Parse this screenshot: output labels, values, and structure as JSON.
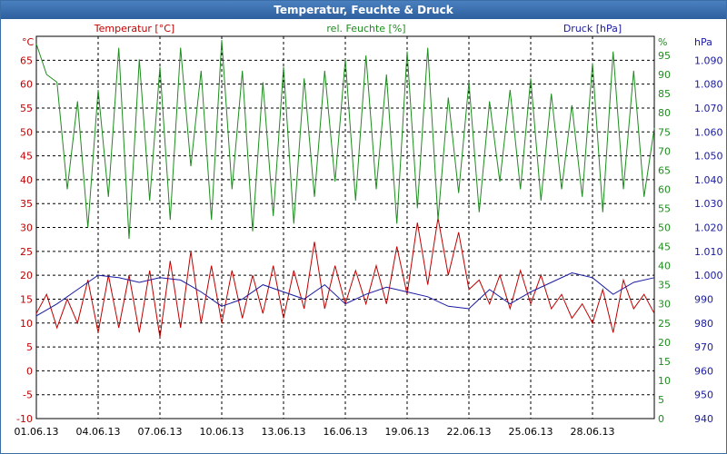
{
  "window": {
    "title": "Temperatur, Feuchte & Druck"
  },
  "chart_data": {
    "type": "line",
    "title": "Temperatur, Feuchte & Druck",
    "x": {
      "label": "",
      "range": [
        0,
        30
      ],
      "ticks": [
        {
          "x": 0,
          "label": "01.06.13"
        },
        {
          "x": 3,
          "label": "04.06.13"
        },
        {
          "x": 6,
          "label": "07.06.13"
        },
        {
          "x": 9,
          "label": "10.06.13"
        },
        {
          "x": 12,
          "label": "13.06.13"
        },
        {
          "x": 15,
          "label": "16.06.13"
        },
        {
          "x": 18,
          "label": "19.06.13"
        },
        {
          "x": 21,
          "label": "22.06.13"
        },
        {
          "x": 24,
          "label": "25.06.13"
        },
        {
          "x": 27,
          "label": "28.06.13"
        }
      ]
    },
    "axes": {
      "temperature": {
        "title": "Temperatur [°C]",
        "unit": "°C",
        "color": "#c00000",
        "ylim": [
          -10,
          70
        ],
        "ticks": [
          "-10",
          "-5",
          "0",
          "5",
          "10",
          "15",
          "20",
          "25",
          "30",
          "35",
          "40",
          "45",
          "50",
          "55",
          "60",
          "65"
        ]
      },
      "humidity": {
        "title": "rel. Feuchte [%]",
        "unit": "%",
        "color": "#1e8c1e",
        "ylim": [
          0,
          100
        ],
        "ticks": [
          "0",
          "5",
          "10",
          "15",
          "20",
          "25",
          "30",
          "35",
          "40",
          "45",
          "50",
          "55",
          "60",
          "65",
          "70",
          "75",
          "80",
          "85",
          "90",
          "95"
        ]
      },
      "pressure": {
        "title": "Druck [hPa]",
        "unit": "hPa",
        "color": "#1a1aa0",
        "ylim": [
          940,
          1100
        ],
        "ticks": [
          "940",
          "950",
          "960",
          "970",
          "980",
          "990",
          "1.000",
          "1.010",
          "1.020",
          "1.030",
          "1.040",
          "1.050",
          "1.060",
          "1.070",
          "1.080",
          "1.090"
        ]
      }
    },
    "series": [
      {
        "name": "Temperatur",
        "axis": "temperature",
        "color": "#c00000",
        "x": [
          0,
          0.5,
          1,
          1.5,
          2,
          2.5,
          3,
          3.5,
          4,
          4.5,
          5,
          5.5,
          6,
          6.5,
          7,
          7.5,
          8,
          8.5,
          9,
          9.5,
          10,
          10.5,
          11,
          11.5,
          12,
          12.5,
          13,
          13.5,
          14,
          14.5,
          15,
          15.5,
          16,
          16.5,
          17,
          17.5,
          18,
          18.5,
          19,
          19.5,
          20,
          20.5,
          21,
          21.5,
          22,
          22.5,
          23,
          23.5,
          24,
          24.5,
          25,
          25.5,
          26,
          26.5,
          27,
          27.5,
          28,
          28.5,
          29,
          29.5,
          30
        ],
        "values": [
          12,
          16,
          9,
          15,
          10,
          19,
          8,
          20,
          9,
          20,
          8,
          21,
          7,
          23,
          9,
          25,
          10,
          22,
          10,
          21,
          11,
          20,
          12,
          22,
          11,
          21,
          13,
          27,
          13,
          22,
          14,
          21,
          14,
          22,
          14,
          26,
          16,
          31,
          18,
          32,
          20,
          29,
          17,
          19,
          14,
          20,
          13,
          21,
          14,
          20,
          13,
          16,
          11,
          14,
          10,
          17,
          8,
          19,
          13,
          16,
          12
        ],
        "peak_max": 32,
        "min": 6
      },
      {
        "name": "rel. Feuchte",
        "axis": "humidity",
        "color": "#1e8c1e",
        "x": [
          0,
          0.5,
          1,
          1.5,
          2,
          2.5,
          3,
          3.5,
          4,
          4.5,
          5,
          5.5,
          6,
          6.5,
          7,
          7.5,
          8,
          8.5,
          9,
          9.5,
          10,
          10.5,
          11,
          11.5,
          12,
          12.5,
          13,
          13.5,
          14,
          14.5,
          15,
          15.5,
          16,
          16.5,
          17,
          17.5,
          18,
          18.5,
          19,
          19.5,
          20,
          20.5,
          21,
          21.5,
          22,
          22.5,
          23,
          23.5,
          24,
          24.5,
          25,
          25.5,
          26,
          26.5,
          27,
          27.5,
          28,
          28.5,
          29,
          29.5,
          30
        ],
        "values": [
          98,
          90,
          88,
          60,
          83,
          50,
          86,
          58,
          97,
          47,
          94,
          57,
          92,
          52,
          97,
          66,
          91,
          52,
          99,
          60,
          91,
          49,
          88,
          53,
          92,
          51,
          89,
          58,
          91,
          62,
          94,
          57,
          95,
          60,
          90,
          51,
          96,
          55,
          97,
          52,
          84,
          59,
          88,
          54,
          83,
          62,
          86,
          60,
          89,
          57,
          85,
          60,
          82,
          58,
          93,
          54,
          96,
          60,
          91,
          58,
          76
        ],
        "peak_max": 99,
        "min": 45
      },
      {
        "name": "Druck",
        "axis": "pressure",
        "color": "#1a1aa0",
        "x": [
          0,
          1,
          2,
          3,
          4,
          5,
          6,
          7,
          8,
          9,
          10,
          11,
          12,
          13,
          14,
          15,
          16,
          17,
          18,
          19,
          20,
          21,
          22,
          23,
          24,
          25,
          26,
          27,
          28,
          29,
          30
        ],
        "values": [
          983,
          988,
          994,
          1000,
          999,
          997,
          999,
          998,
          993,
          987,
          990,
          996,
          993,
          990,
          996,
          988,
          992,
          995,
          993,
          991,
          987,
          986,
          994,
          988,
          993,
          997,
          1001,
          999,
          992,
          997,
          999
        ],
        "peak_max": 1001,
        "min": 983
      }
    ],
    "grid": true,
    "legend": "top"
  }
}
